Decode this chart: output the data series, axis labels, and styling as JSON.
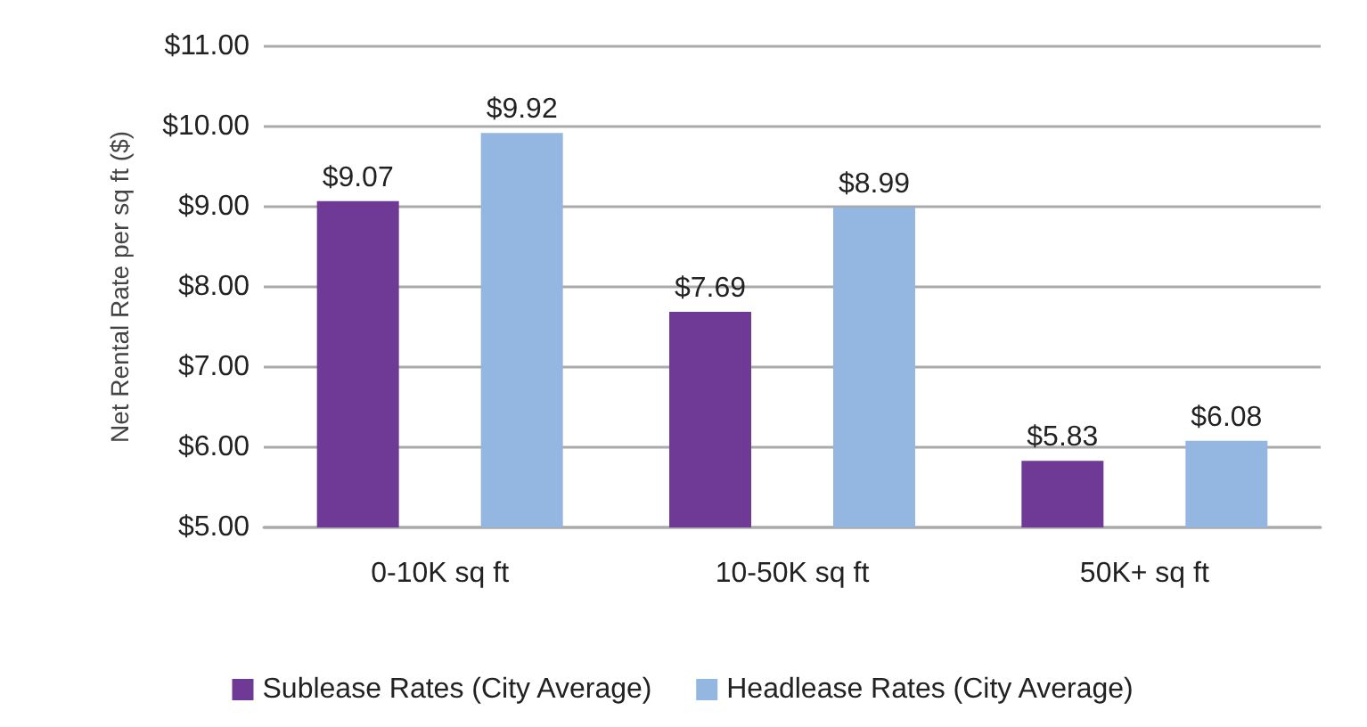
{
  "chart_data": {
    "type": "bar",
    "ylabel": "Net Rental Rate per sq ft ($)",
    "categories": [
      "0-10K sq ft",
      "10-50K sq ft",
      "50K+ sq ft"
    ],
    "series": [
      {
        "name": "Sublease Rates (City Average)",
        "color": "#6f3a96",
        "values": [
          9.07,
          7.69,
          5.83
        ],
        "value_labels": [
          "$9.07",
          "$7.69",
          "$5.83"
        ]
      },
      {
        "name": "Headlease Rates (City Average)",
        "color": "#93b7e0",
        "values": [
          9.92,
          8.99,
          6.08
        ],
        "value_labels": [
          "$9.92",
          "$8.99",
          "$6.08"
        ]
      }
    ],
    "ylim": [
      5,
      11
    ],
    "yticks": [
      {
        "value": 5,
        "label": "$5.00"
      },
      {
        "value": 6,
        "label": "$6.00"
      },
      {
        "value": 7,
        "label": "$7.00"
      },
      {
        "value": 8,
        "label": "$8.00"
      },
      {
        "value": 9,
        "label": "$9.00"
      },
      {
        "value": 10,
        "label": "$10.00"
      },
      {
        "value": 11,
        "label": "$11.00"
      }
    ],
    "grid": "y",
    "legend": "bottom"
  }
}
